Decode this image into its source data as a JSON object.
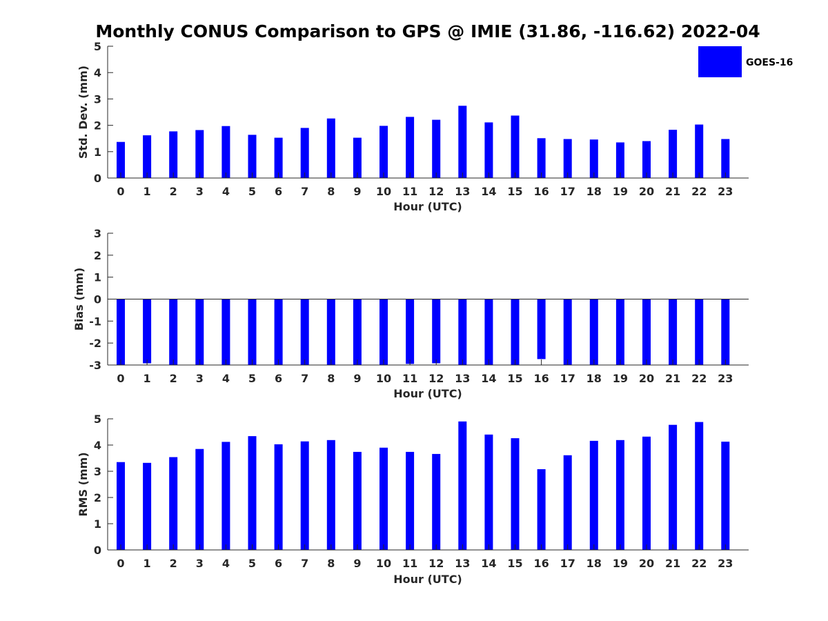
{
  "title": "Monthly CONUS Comparison to GPS @ IMIE (31.86, -116.62) 2022-04",
  "colors": {
    "bar": "#0000ff",
    "axis": "#262626"
  },
  "legend": {
    "label": "GOES-16",
    "placement": "top-right"
  },
  "chart_data": [
    {
      "type": "bar",
      "title": "",
      "xlabel": "Hour (UTC)",
      "ylabel": "Std. Dev. (mm)",
      "categories": [
        "0",
        "1",
        "2",
        "3",
        "4",
        "5",
        "6",
        "7",
        "8",
        "9",
        "10",
        "11",
        "12",
        "13",
        "14",
        "15",
        "16",
        "17",
        "18",
        "19",
        "20",
        "21",
        "22",
        "23"
      ],
      "series": [
        {
          "name": "GOES-16",
          "values": [
            1.37,
            1.62,
            1.77,
            1.82,
            1.97,
            1.64,
            1.53,
            1.9,
            2.26,
            1.53,
            1.98,
            2.32,
            2.21,
            2.74,
            2.11,
            2.37,
            1.51,
            1.48,
            1.46,
            1.35,
            1.4,
            1.83,
            2.03,
            1.48
          ]
        }
      ],
      "ylim": [
        0,
        5
      ],
      "yticks": [
        0,
        1,
        2,
        3,
        4,
        5
      ],
      "grid": false
    },
    {
      "type": "bar",
      "title": "",
      "xlabel": "Hour (UTC)",
      "ylabel": "Bias (mm)",
      "categories": [
        "0",
        "1",
        "2",
        "3",
        "4",
        "5",
        "6",
        "7",
        "8",
        "9",
        "10",
        "11",
        "12",
        "13",
        "14",
        "15",
        "16",
        "17",
        "18",
        "19",
        "20",
        "21",
        "22",
        "23"
      ],
      "series": [
        {
          "name": "GOES-16",
          "values": [
            -3,
            -2.92,
            -3,
            -3,
            -3,
            -3,
            -3,
            -3,
            -3,
            -3,
            -3,
            -2.95,
            -2.92,
            -3,
            -3,
            -3,
            -2.73,
            -3,
            -3,
            -3,
            -3,
            -3,
            -3,
            -3
          ]
        }
      ],
      "ylim": [
        -3,
        3
      ],
      "yticks": [
        -3,
        -2,
        -1,
        0,
        1,
        2,
        3
      ],
      "grid": false
    },
    {
      "type": "bar",
      "title": "",
      "xlabel": "Hour (UTC)",
      "ylabel": "RMS (mm)",
      "categories": [
        "0",
        "1",
        "2",
        "3",
        "4",
        "5",
        "6",
        "7",
        "8",
        "9",
        "10",
        "11",
        "12",
        "13",
        "14",
        "15",
        "16",
        "17",
        "18",
        "19",
        "20",
        "21",
        "22",
        "23"
      ],
      "series": [
        {
          "name": "GOES-16",
          "values": [
            3.35,
            3.32,
            3.54,
            3.85,
            4.12,
            4.34,
            4.03,
            4.14,
            4.19,
            3.74,
            3.9,
            3.74,
            3.66,
            4.9,
            4.4,
            4.26,
            3.08,
            3.61,
            4.16,
            4.19,
            4.32,
            4.77,
            4.88,
            4.13
          ]
        }
      ],
      "ylim": [
        0,
        5
      ],
      "yticks": [
        0,
        1,
        2,
        3,
        4,
        5
      ],
      "grid": false
    }
  ]
}
